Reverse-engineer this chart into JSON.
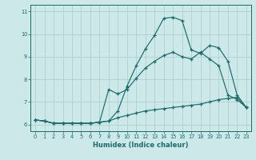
{
  "xlabel": "Humidex (Indice chaleur)",
  "background_color": "#cce8e8",
  "line_color": "#1a6b6b",
  "grid_color": "#aacccc",
  "xlim": [
    -0.5,
    23.5
  ],
  "ylim": [
    5.7,
    11.3
  ],
  "xticks": [
    0,
    1,
    2,
    3,
    4,
    5,
    6,
    7,
    8,
    9,
    10,
    11,
    12,
    13,
    14,
    15,
    16,
    17,
    18,
    19,
    20,
    21,
    22,
    23
  ],
  "yticks": [
    6,
    7,
    8,
    9,
    10,
    11
  ],
  "series1_x": [
    0,
    1,
    2,
    3,
    4,
    5,
    6,
    7,
    8,
    9,
    10,
    11,
    12,
    13,
    14,
    15,
    16,
    17,
    18,
    19,
    20,
    21,
    22,
    23
  ],
  "series1_y": [
    6.2,
    6.15,
    6.05,
    6.05,
    6.05,
    6.05,
    6.05,
    6.1,
    6.15,
    6.6,
    7.7,
    8.6,
    9.35,
    9.95,
    10.7,
    10.75,
    10.6,
    9.3,
    9.15,
    9.5,
    9.4,
    8.8,
    7.3,
    6.75
  ],
  "series2_x": [
    0,
    1,
    2,
    3,
    4,
    5,
    6,
    7,
    8,
    9,
    10,
    11,
    12,
    13,
    14,
    15,
    16,
    17,
    18,
    19,
    20,
    21,
    22,
    23
  ],
  "series2_y": [
    6.2,
    6.15,
    6.05,
    6.05,
    6.05,
    6.05,
    6.05,
    6.1,
    7.55,
    7.35,
    7.55,
    8.05,
    8.5,
    8.8,
    9.05,
    9.2,
    9.0,
    8.9,
    9.2,
    8.9,
    8.6,
    7.3,
    7.1,
    6.75
  ],
  "series3_x": [
    0,
    1,
    2,
    3,
    4,
    5,
    6,
    7,
    8,
    9,
    10,
    11,
    12,
    13,
    14,
    15,
    16,
    17,
    18,
    19,
    20,
    21,
    22,
    23
  ],
  "series3_y": [
    6.2,
    6.15,
    6.05,
    6.05,
    6.05,
    6.05,
    6.05,
    6.1,
    6.15,
    6.3,
    6.4,
    6.5,
    6.6,
    6.65,
    6.7,
    6.75,
    6.8,
    6.85,
    6.9,
    7.0,
    7.1,
    7.15,
    7.2,
    6.75
  ]
}
